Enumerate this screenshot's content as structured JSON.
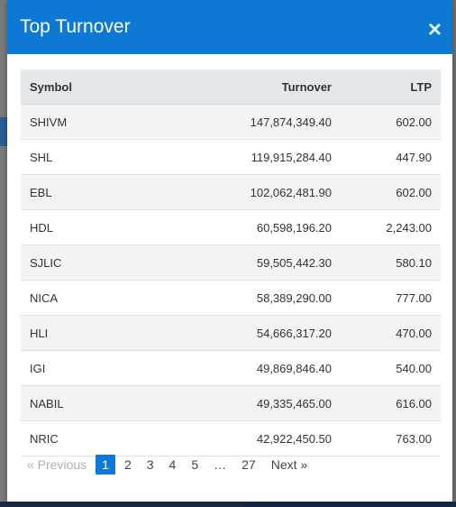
{
  "modal": {
    "title": "Top Turnover",
    "close_glyph": "×"
  },
  "table": {
    "headers": {
      "symbol": "Symbol",
      "turnover": "Turnover",
      "ltp": "LTP"
    },
    "rows": [
      {
        "symbol": "SHIVM",
        "turnover": "147,874,349.40",
        "ltp": "602.00"
      },
      {
        "symbol": "SHL",
        "turnover": "119,915,284.40",
        "ltp": "447.90"
      },
      {
        "symbol": "EBL",
        "turnover": "102,062,481.90",
        "ltp": "602.00"
      },
      {
        "symbol": "HDL",
        "turnover": "60,598,196.20",
        "ltp": "2,243.00"
      },
      {
        "symbol": "SJLIC",
        "turnover": "59,505,442.30",
        "ltp": "580.10"
      },
      {
        "symbol": "NICA",
        "turnover": "58,389,290.00",
        "ltp": "777.00"
      },
      {
        "symbol": "HLI",
        "turnover": "54,666,317.20",
        "ltp": "470.00"
      },
      {
        "symbol": "IGI",
        "turnover": "49,869,846.40",
        "ltp": "540.00"
      },
      {
        "symbol": "NABIL",
        "turnover": "49,335,465.00",
        "ltp": "616.00"
      },
      {
        "symbol": "NRIC",
        "turnover": "42,922,450.50",
        "ltp": "763.00"
      }
    ]
  },
  "pagination": {
    "previous_label": "« Previous",
    "pages": [
      "1",
      "2",
      "3",
      "4",
      "5"
    ],
    "ellipsis": "…",
    "last_page": "27",
    "next_label": "Next »",
    "current_page": "1"
  },
  "colors": {
    "header_blue": "#0e78d5",
    "row_stripe": "#f2f3f5",
    "table_head_bg": "#e5e8eb"
  }
}
